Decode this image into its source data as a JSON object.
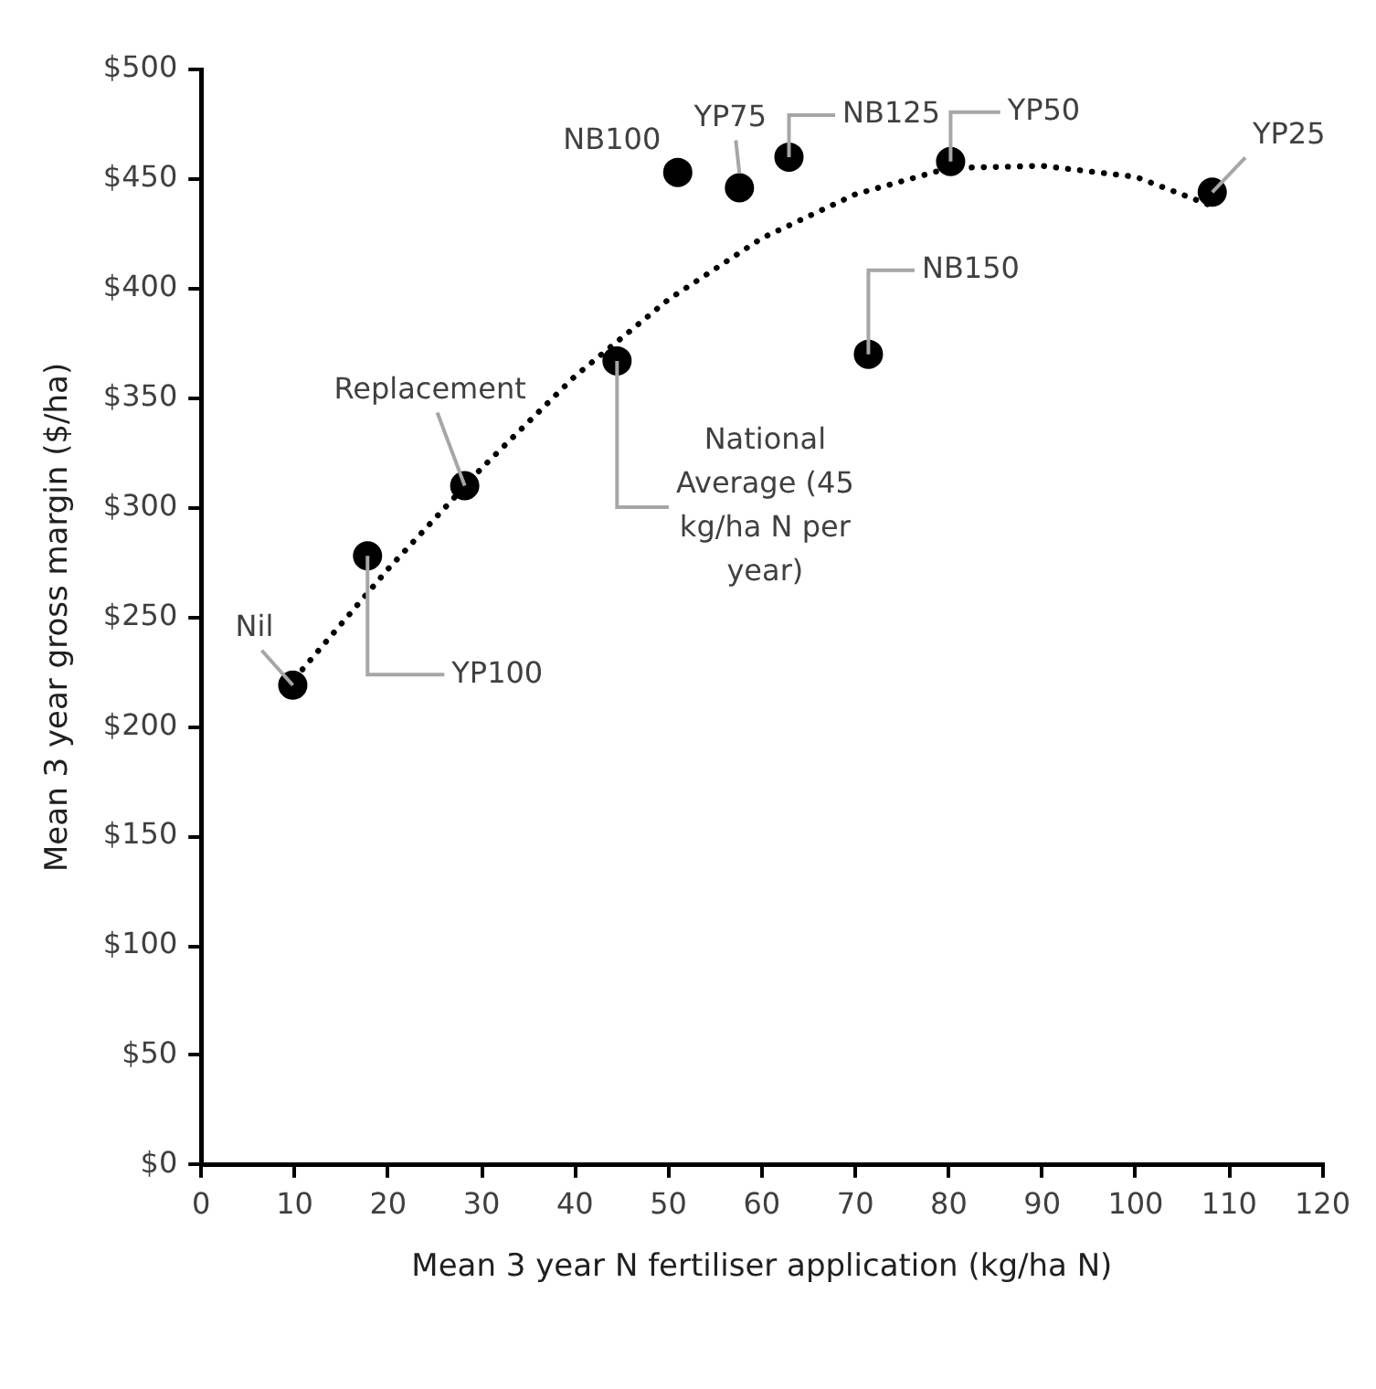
{
  "chart_data": {
    "type": "scatter",
    "xlabel": "Mean 3 year N fertiliser application (kg/ha N)",
    "ylabel": "Mean 3 year gross margin ($/ha)",
    "xlim": [
      0,
      120
    ],
    "xticks": [
      0,
      10,
      20,
      30,
      40,
      50,
      60,
      70,
      80,
      90,
      100,
      110,
      120
    ],
    "ylim": [
      0,
      500
    ],
    "yticks": [
      {
        "value": 0,
        "label": "$0"
      },
      {
        "value": 50,
        "label": "$50"
      },
      {
        "value": 100,
        "label": "$100"
      },
      {
        "value": 150,
        "label": "$150"
      },
      {
        "value": 200,
        "label": "$200"
      },
      {
        "value": 250,
        "label": "$250"
      },
      {
        "value": 300,
        "label": "$300"
      },
      {
        "value": 350,
        "label": "$350"
      },
      {
        "value": 400,
        "label": "$400"
      },
      {
        "value": 450,
        "label": "$450"
      },
      {
        "value": 500,
        "label": "$500"
      }
    ],
    "grid": false,
    "legend": false,
    "series": [
      {
        "type": "scatter",
        "color": "#000000",
        "marker": "circle",
        "x": [
          9.8,
          17.8,
          28.2,
          44.5,
          51,
          57.6,
          62.9,
          71.4,
          80.2,
          108.2
        ],
        "values": [
          219,
          278,
          310,
          367,
          453,
          446,
          460,
          370,
          458,
          444
        ]
      },
      {
        "type": "line",
        "color": "#000000",
        "marker": "none",
        "line_style": "dotted",
        "x": [
          10,
          20,
          30,
          40,
          50,
          60,
          70,
          80,
          90,
          100,
          108
        ],
        "values": [
          222,
          272,
          318,
          360,
          395,
          423,
          443,
          455,
          456,
          451,
          438
        ]
      }
    ],
    "annotations": [
      {
        "text": "Nil",
        "x": 9.8,
        "y": 219
      },
      {
        "text": "YP100",
        "x": 17.8,
        "y": 278
      },
      {
        "text": "Replacement",
        "x": 28.2,
        "y": 310
      },
      {
        "text": "National Average (45 kg/ha N per year)",
        "x": 44.5,
        "y": 367
      },
      {
        "text": "NB100",
        "x": 51,
        "y": 453
      },
      {
        "text": "YP75",
        "x": 57.6,
        "y": 446
      },
      {
        "text": "NB125",
        "x": 62.9,
        "y": 460
      },
      {
        "text": "NB150",
        "x": 71.4,
        "y": 370
      },
      {
        "text": "YP50",
        "x": 80.2,
        "y": 458
      },
      {
        "text": "YP25",
        "x": 108.2,
        "y": 444
      }
    ]
  }
}
